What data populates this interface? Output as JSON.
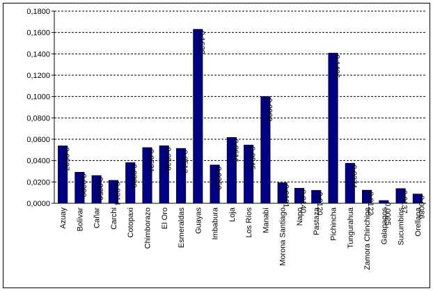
{
  "chart_data": {
    "type": "bar",
    "categories": [
      "Azuay",
      "Bolívar",
      "Cañar",
      "Carchi",
      "Cotopaxi",
      "Chimborazo",
      "El Oro",
      "Esmeraldas",
      "Guayas",
      "Imbabura",
      "Loja",
      "Los Ríos",
      "Manabí",
      "Morona Santiago",
      "Napo",
      "Pastaza",
      "Pichincha",
      "Tungurahua",
      "Zamora Chinchipe",
      "Galapagos",
      "Sucumbios",
      "Orellana"
    ],
    "values": [
      0.0537,
      0.029,
      0.0259,
      0.0214,
      0.038,
      0.0521,
      0.0538,
      0.0513,
      0.1629,
      0.0358,
      0.0616,
      0.0545,
      0.0999,
      0.0191,
      0.014,
      0.012,
      0.1406,
      0.0374,
      0.0122,
      0.0025,
      0.0137,
      0.0086
    ],
    "value_labels": [
      "0,0537",
      "0,0290",
      "0,0259",
      "0,0214",
      "0,0380",
      "0,0521",
      "0,0538",
      "0,0513",
      "0,1629",
      "0,0358",
      "0,0616",
      "0,0545",
      "0,0999",
      "0,0191",
      "0,0140",
      "0,0120",
      "0,1406",
      "0,0374",
      "0,0122",
      "0,0025",
      "0,0137",
      "0,0086"
    ],
    "color": "#000080",
    "ylim": [
      0,
      0.18
    ],
    "yticks": [
      {
        "value": 0,
        "label": "0,0000"
      },
      {
        "value": 0.02,
        "label": "0,0200"
      },
      {
        "value": 0.04,
        "label": "0,0400"
      },
      {
        "value": 0.06,
        "label": "0,0600"
      },
      {
        "value": 0.08,
        "label": "0,0800"
      },
      {
        "value": 0.1,
        "label": "0,1000"
      },
      {
        "value": 0.12,
        "label": "0,1200"
      },
      {
        "value": 0.14,
        "label": "0,1400"
      },
      {
        "value": 0.16,
        "label": "0,1600"
      },
      {
        "value": 0.18,
        "label": "0,1800"
      }
    ],
    "grid": true
  }
}
